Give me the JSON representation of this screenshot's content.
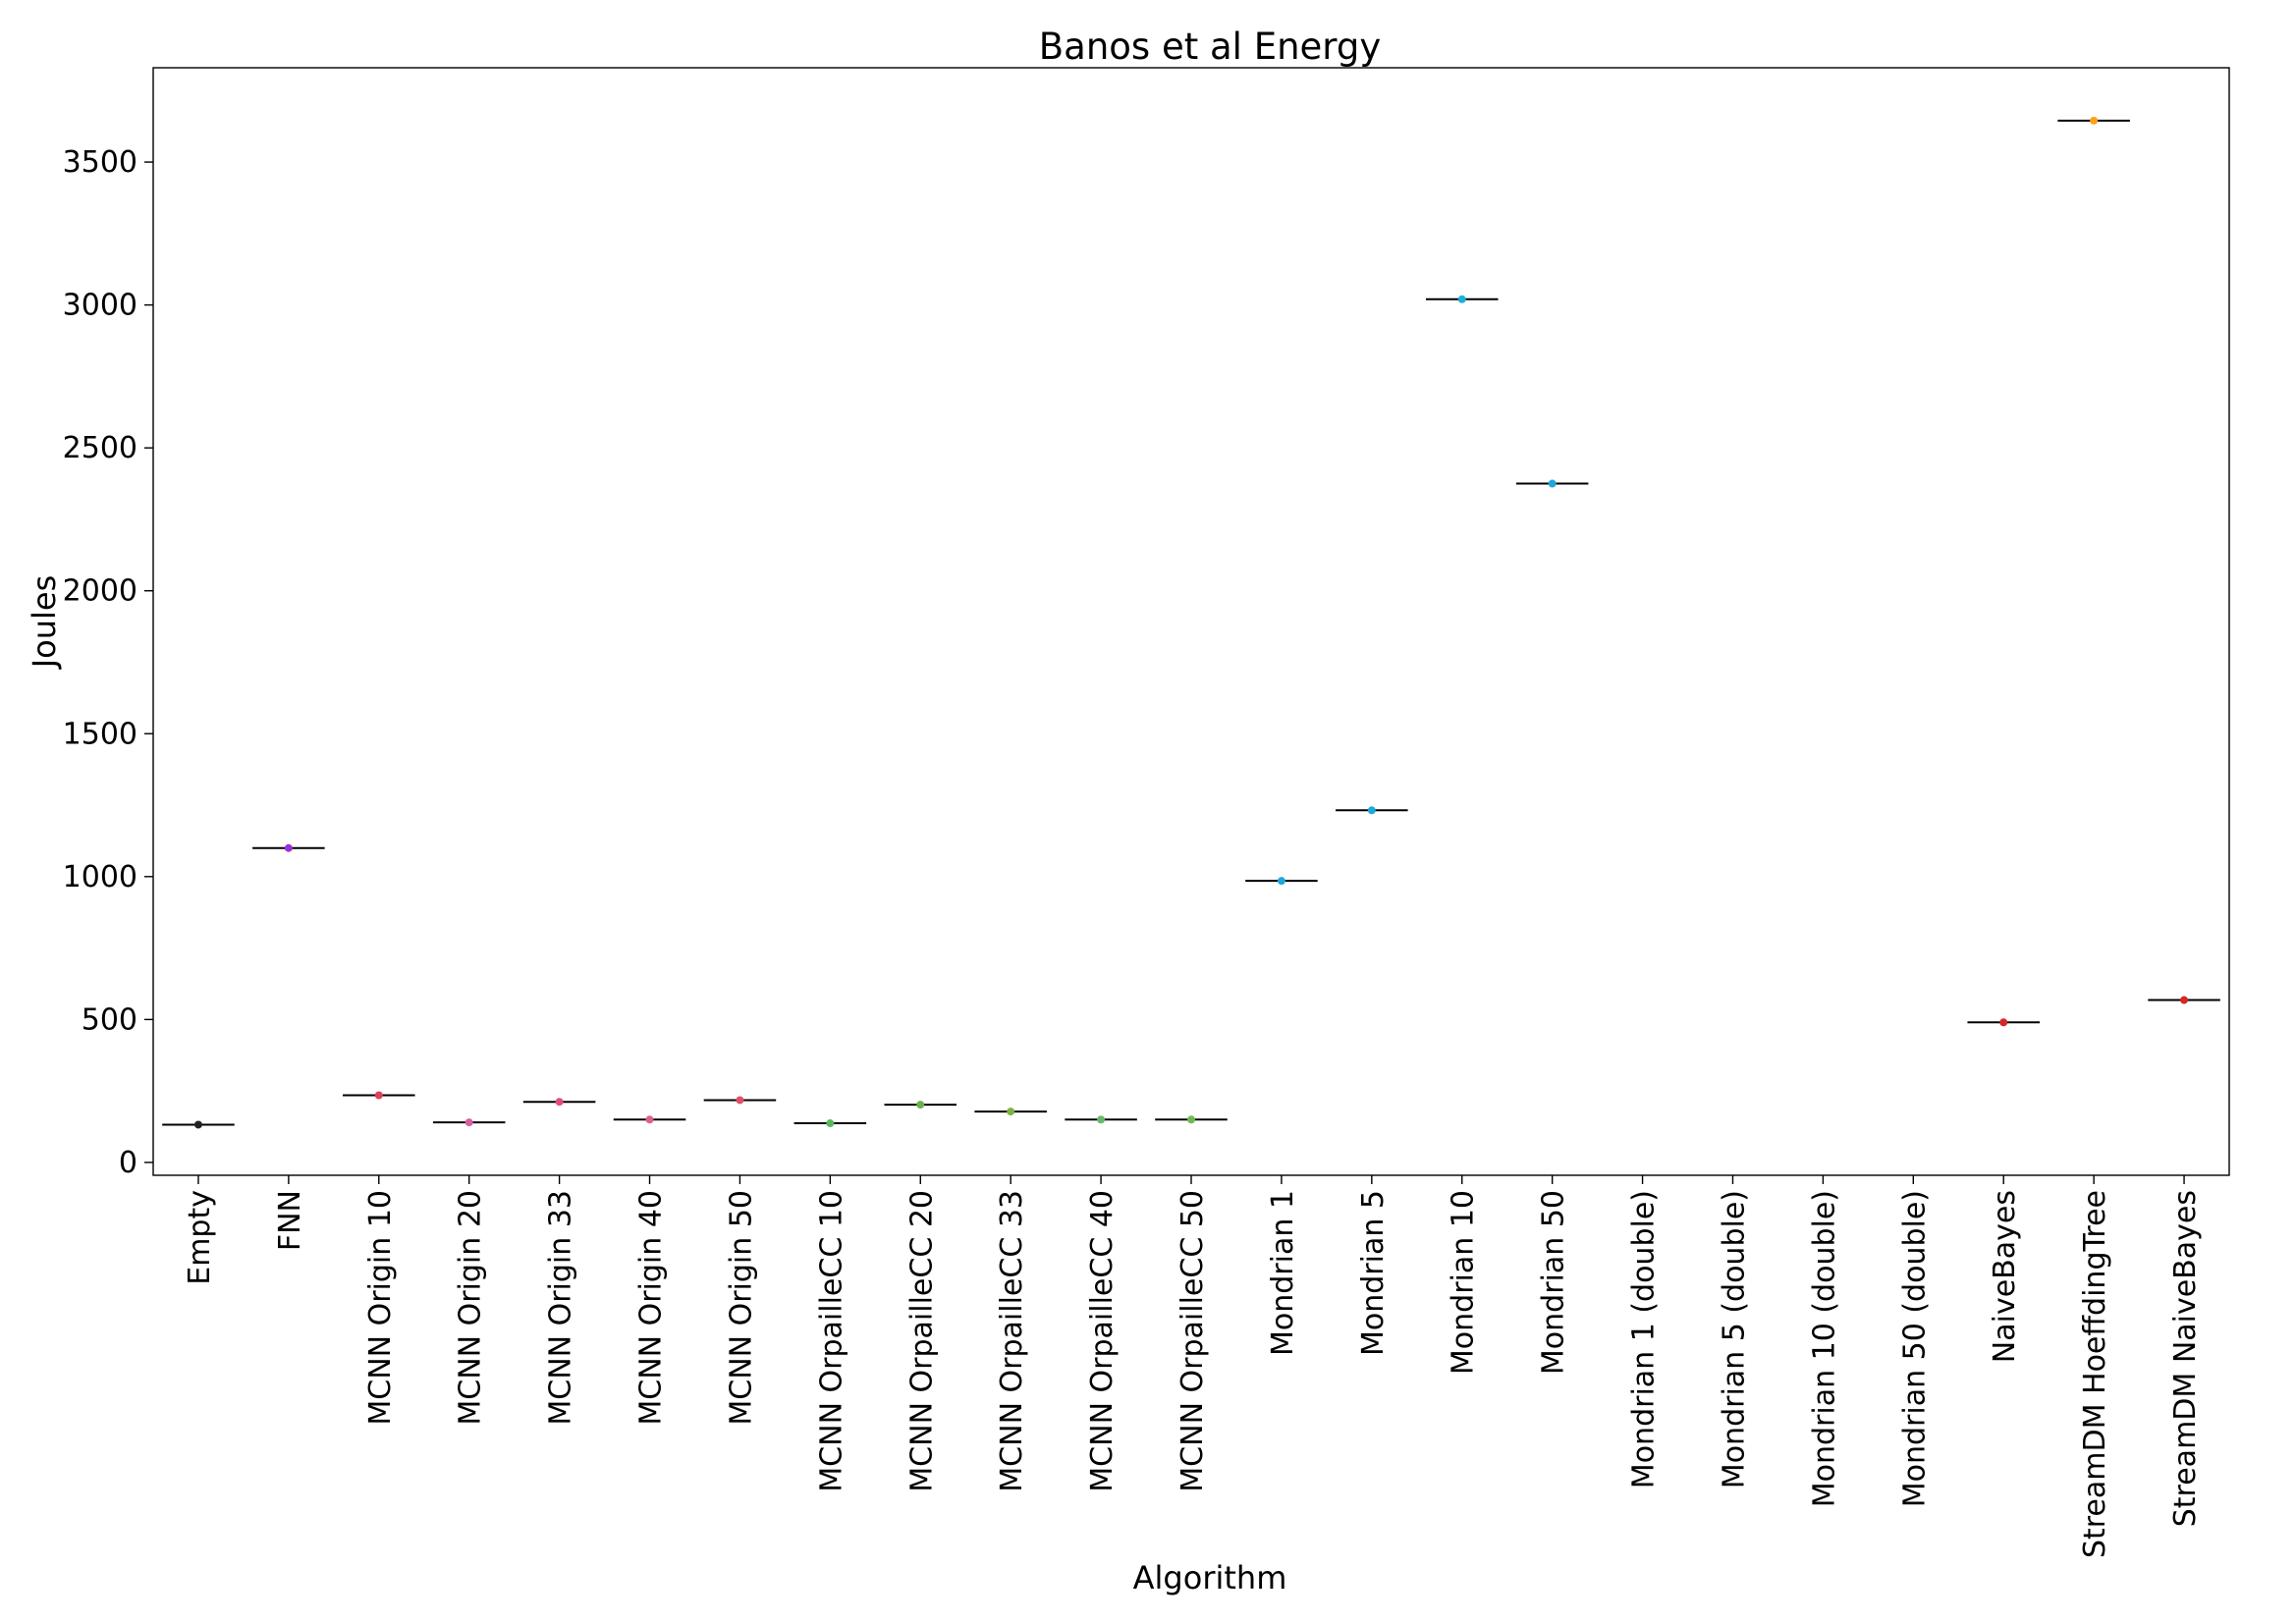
{
  "chart_data": {
    "type": "box",
    "title": "Banos et al Energy",
    "xlabel": "Algorithm",
    "ylabel": "Joules",
    "ylim": [
      -45,
      3830
    ],
    "yticks": [
      0,
      500,
      1000,
      1500,
      2000,
      2500,
      3000,
      3500
    ],
    "grid": false,
    "categories": [
      "Empty",
      "FNN",
      "MCNN Origin 10",
      "MCNN Origin 20",
      "MCNN Origin 33",
      "MCNN Origin 40",
      "MCNN Origin 50",
      "MCNN OrpailleCC 10",
      "MCNN OrpailleCC 20",
      "MCNN OrpailleCC 33",
      "MCNN OrpailleCC 40",
      "MCNN OrpailleCC 50",
      "Mondrian 1",
      "Mondrian 5",
      "Mondrian 10",
      "Mondrian 50",
      "Mondrian 1 (double)",
      "Mondrian 5 (double)",
      "Mondrian 10 (double)",
      "Mondrian 50 (double)",
      "NaiveBayes",
      "StreamDM HoeffdingTree",
      "StreamDM NaiveBayes"
    ],
    "values": [
      132,
      1100,
      235,
      140,
      212,
      150,
      218,
      137,
      202,
      178,
      150,
      150,
      985,
      1232,
      3020,
      2375,
      null,
      null,
      null,
      null,
      490,
      3645,
      568
    ],
    "point_colors": [
      "#222222",
      "#9b30d9",
      "#e0405c",
      "#d95f9e",
      "#e04f78",
      "#e0608a",
      "#e0506a",
      "#5cb85c",
      "#6ab04c",
      "#7cb342",
      "#66bb6a",
      "#72b856",
      "#1fa8d9",
      "#1fa8d9",
      "#1fb0d6",
      "#1fa8d9",
      null,
      null,
      null,
      null,
      "#d62728",
      "#ff9f1a",
      "#d62728"
    ]
  }
}
